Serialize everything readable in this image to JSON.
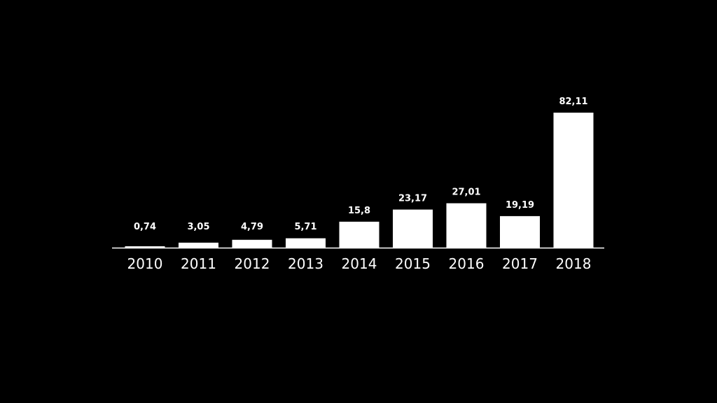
{
  "colors": {
    "background": "#000000",
    "bar": "#ffffff",
    "axis": "#ffffff",
    "text": "#ffffff"
  },
  "chart_data": {
    "type": "bar",
    "categories": [
      "2010",
      "2011",
      "2012",
      "2013",
      "2014",
      "2015",
      "2016",
      "2017",
      "2018"
    ],
    "values": [
      0.74,
      3.05,
      4.79,
      5.71,
      15.8,
      23.17,
      27.01,
      19.19,
      82.11
    ],
    "value_labels": [
      "0,74",
      "3,05",
      "4,79",
      "5,71",
      "15,8",
      "23,17",
      "27,01",
      "19,19",
      "82,11"
    ],
    "title": "",
    "xlabel": "",
    "ylabel": "",
    "ylim": [
      0,
      82.11
    ],
    "grid": false,
    "legend": "none"
  }
}
